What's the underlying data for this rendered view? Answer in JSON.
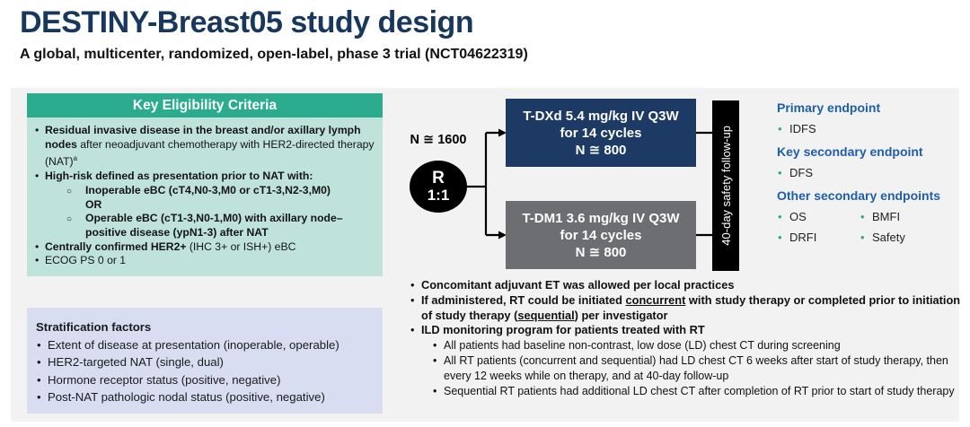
{
  "header": {
    "title": "DESTINY-Breast05 study design",
    "subtitle": "A global, multicenter, randomized, open-label, phase 3 trial (NCT04622319)"
  },
  "eligibility": {
    "title": "Key Eligibility Criteria",
    "bullet1": [
      {
        "t": "Residual invasive disease in the breast and/or axillary lymph nodes",
        "b": true
      },
      {
        "t": " after neoadjuvant chemotherapy with HER2-directed therapy (NAT)"
      },
      {
        "t": "a",
        "sup": true
      }
    ],
    "bullet2": [
      {
        "t": "High-risk defined as presentation prior to NAT with:",
        "b": true
      }
    ],
    "bullet2_sub1": [
      {
        "t": "Inoperable eBC (cT4,N0-3,",
        "b": true
      },
      {
        "t": "M0"
      },
      {
        "t": " or cT1-3,N2-3,",
        "b": true
      },
      {
        "t": "M0)"
      }
    ],
    "or_label": "OR",
    "bullet2_sub2": [
      {
        "t": "Operable eBC (cT1-3,N0-1,",
        "b": true
      },
      {
        "t": "M0)"
      },
      {
        "t": " with axillary node–positive disease (ypN1-3) after NAT",
        "b": true
      }
    ],
    "bullet3": [
      {
        "t": "Centrally confirmed HER2+",
        "b": true
      },
      {
        "t": " (IHC 3+ or ISH+) eBC"
      }
    ],
    "bullet4": [
      {
        "t": "ECOG PS 0 or 1"
      }
    ]
  },
  "stratification": {
    "title": "Stratification factors",
    "items": [
      "Extent of disease at presentation (inoperable, operable)",
      "HER2-targeted NAT (single, dual)",
      "Hormone receptor status (positive, negative)",
      "Post-NAT pathologic nodal status (positive, negative)"
    ]
  },
  "flow": {
    "n_total": "N ≅ 1600",
    "randomization_letter": "R",
    "randomization_ratio": "1:1",
    "arm_tdxd": {
      "line1": "T-DXd 5.4 mg/kg IV Q3W",
      "line2": "for 14 cycles",
      "line3": "N ≅ 800"
    },
    "arm_tdm1": {
      "line1": "T-DM1 3.6 mg/kg IV Q3W",
      "line2": "for 14 cycles",
      "line3": "N ≅ 800"
    },
    "followup_label": "40-day safety follow-up"
  },
  "endpoints": {
    "primary_heading": "Primary endpoint",
    "primary_items": [
      "IDFS"
    ],
    "key_secondary_heading": "Key secondary endpoint",
    "key_secondary_items": [
      "DFS"
    ],
    "other_heading": "Other secondary endpoints",
    "other_items_col1": [
      "OS",
      "DRFI"
    ],
    "other_items_col2": [
      "BMFI",
      "Safety"
    ]
  },
  "notes": {
    "bullet1": [
      {
        "t": "Concomitant adjuvant ET was allowed per local practices",
        "b": true
      }
    ],
    "bullet2": [
      {
        "t": "If administered, RT could be initiated ",
        "b": true
      },
      {
        "t": "concurrent",
        "b": true,
        "u": true
      },
      {
        "t": " with study therapy or completed prior to initiation of study therapy (",
        "b": true
      },
      {
        "t": "sequential",
        "b": true,
        "u": true
      },
      {
        "t": ") per investigator",
        "b": true
      }
    ],
    "bullet3": [
      {
        "t": "ILD monitoring program for patients treated with RT",
        "b": true
      }
    ],
    "sub1": [
      {
        "t": "All patients had baseline non-contrast, low dose (LD) chest CT during screening"
      }
    ],
    "sub2": [
      {
        "t": "All RT patients (concurrent and sequential) had LD chest CT 6 weeks after start of study therapy, then every 12 weeks while on therapy, and at 40-day follow-up"
      }
    ],
    "sub3": [
      {
        "t": "Sequential RT patients had additional LD chest CT after completion of RT prior to start of study therapy"
      }
    ]
  },
  "colors": {
    "title_navy": "#17375D",
    "teal": "#2BAC8E",
    "mint": "#BFE3DA",
    "lavender": "#D9DDF2",
    "arm_navy": "#1C3A64",
    "arm_gray": "#6D6E71",
    "endpoint_blue": "#1E5FA8",
    "panel_gray": "#F2F2F2"
  }
}
